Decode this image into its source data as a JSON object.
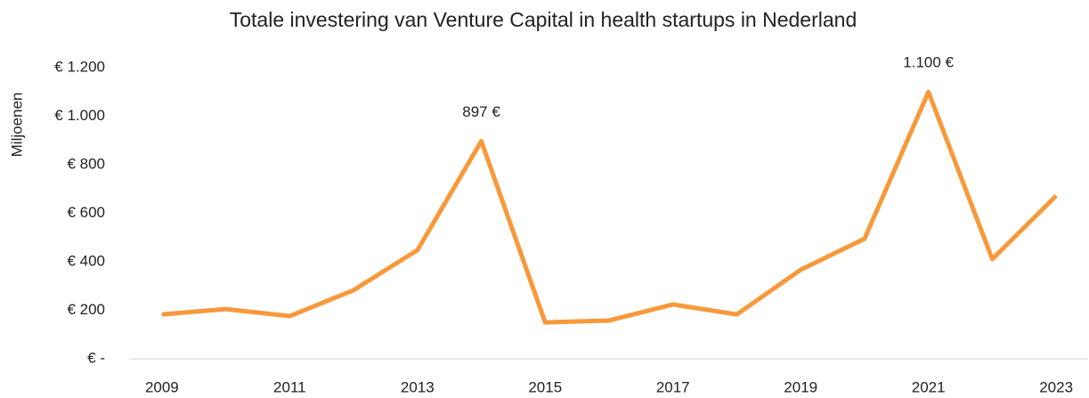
{
  "chart_data": {
    "type": "line",
    "title": "Totale investering van Venture Capital in health startups in Nederland",
    "y_label": "Miljoenen",
    "categories": [
      "2009",
      null,
      "2011",
      null,
      "2013",
      null,
      "2015",
      null,
      "2017",
      null,
      "2019",
      null,
      "2021",
      null,
      "2023"
    ],
    "series": [
      {
        "name": "Totale investering",
        "color": "#f7993a",
        "values": [
          183,
          205,
          176,
          283,
          448,
          897,
          150,
          158,
          224,
          183,
          367,
          495,
          1100,
          411,
          672
        ],
        "value_labels": [
          null,
          null,
          null,
          null,
          null,
          "897 €",
          null,
          null,
          null,
          null,
          null,
          null,
          "1.100 €",
          null,
          null
        ]
      }
    ],
    "ylim": [
      0,
      1200
    ],
    "yticks": [
      {
        "value": 0,
        "label": "€ -"
      },
      {
        "value": 200,
        "label": "€ 200"
      },
      {
        "value": 400,
        "label": "€ 400"
      },
      {
        "value": 600,
        "label": "€ 600"
      },
      {
        "value": 800,
        "label": "€ 800"
      },
      {
        "value": 1000,
        "label": "€ 1.000"
      },
      {
        "value": 1200,
        "label": "€ 1.200"
      }
    ],
    "grid": false
  }
}
